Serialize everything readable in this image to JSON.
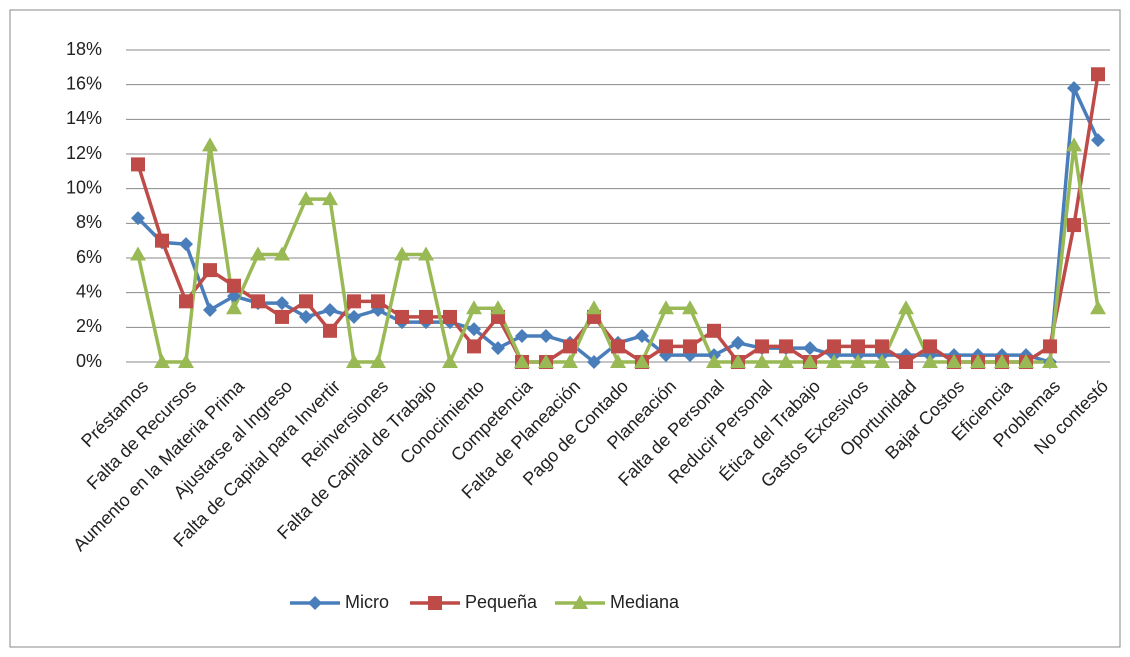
{
  "chart_data": {
    "type": "line",
    "categories": [
      "Préstamos",
      null,
      "Falta de Recursos",
      null,
      "Aumento en la Materia Prima",
      null,
      "Ajustarse al Ingreso",
      null,
      "Falta de Capital para Invertir",
      null,
      "Reinversiones",
      null,
      "Falta de Capital de Trabajo",
      null,
      "Conocimiento",
      null,
      "Competencia",
      null,
      "Falta de Planeación",
      null,
      "Pago de Contado",
      null,
      "Planeación",
      null,
      "Falta de Personal",
      null,
      "Reducir Personal",
      null,
      "Ética del Trabajo",
      null,
      "Gastos Excesivos",
      null,
      "Oportunidad",
      null,
      "Bajar Costos",
      null,
      "Eficiencia",
      null,
      "Problemas",
      null,
      "No contestó"
    ],
    "series": [
      {
        "name": "Micro",
        "color": "#4a7ebb",
        "values": [
          8.3,
          6.9,
          6.8,
          3.0,
          3.8,
          3.4,
          3.4,
          2.6,
          3.0,
          2.6,
          3.0,
          2.3,
          2.3,
          2.3,
          1.9,
          0.8,
          1.5,
          1.5,
          1.1,
          0,
          1.1,
          1.5,
          0.4,
          0.4,
          0.4,
          1.1,
          0.8,
          0.8,
          0.8,
          0.4,
          0.4,
          0.4,
          0.4,
          0.4,
          0.4,
          0.4,
          0.4,
          0.4,
          0,
          15.8,
          12.8
        ]
      },
      {
        "name": "Pequeña",
        "color": "#be4b48",
        "values": [
          11.4,
          7.0,
          3.5,
          5.3,
          4.4,
          3.5,
          2.6,
          3.5,
          1.8,
          3.5,
          3.5,
          2.6,
          2.6,
          2.6,
          0.9,
          2.6,
          0,
          0,
          0.9,
          2.6,
          0.9,
          0,
          0.9,
          0.9,
          1.8,
          0,
          0.9,
          0.9,
          0,
          0.9,
          0.9,
          0.9,
          0,
          0.9,
          0,
          0,
          0,
          0,
          0.9,
          7.9,
          16.6
        ]
      },
      {
        "name": "Mediana",
        "color": "#98b954",
        "values": [
          6.2,
          0,
          0,
          12.5,
          3.1,
          6.2,
          6.2,
          9.4,
          9.4,
          0,
          0,
          6.2,
          6.2,
          0,
          3.1,
          3.1,
          0,
          0,
          0,
          3.1,
          0,
          0,
          3.1,
          3.1,
          0,
          0,
          0,
          0,
          0,
          0,
          0,
          0,
          3.1,
          0,
          0,
          0,
          0,
          0,
          0,
          12.5,
          3.1
        ]
      }
    ],
    "markers": [
      "diamond",
      "square",
      "triangle"
    ],
    "ylim": [
      0,
      18
    ],
    "yticks": [
      {
        "value": 0,
        "label": "0%"
      },
      {
        "value": 2,
        "label": "2%"
      },
      {
        "value": 4,
        "label": "4%"
      },
      {
        "value": 6,
        "label": "6%"
      },
      {
        "value": 8,
        "label": "8%"
      },
      {
        "value": 10,
        "label": "10%"
      },
      {
        "value": 12,
        "label": "12%"
      },
      {
        "value": 14,
        "label": "14%"
      },
      {
        "value": 16,
        "label": "16%"
      },
      {
        "value": 18,
        "label": "18%"
      }
    ],
    "grid": true,
    "legend": "bottom"
  }
}
